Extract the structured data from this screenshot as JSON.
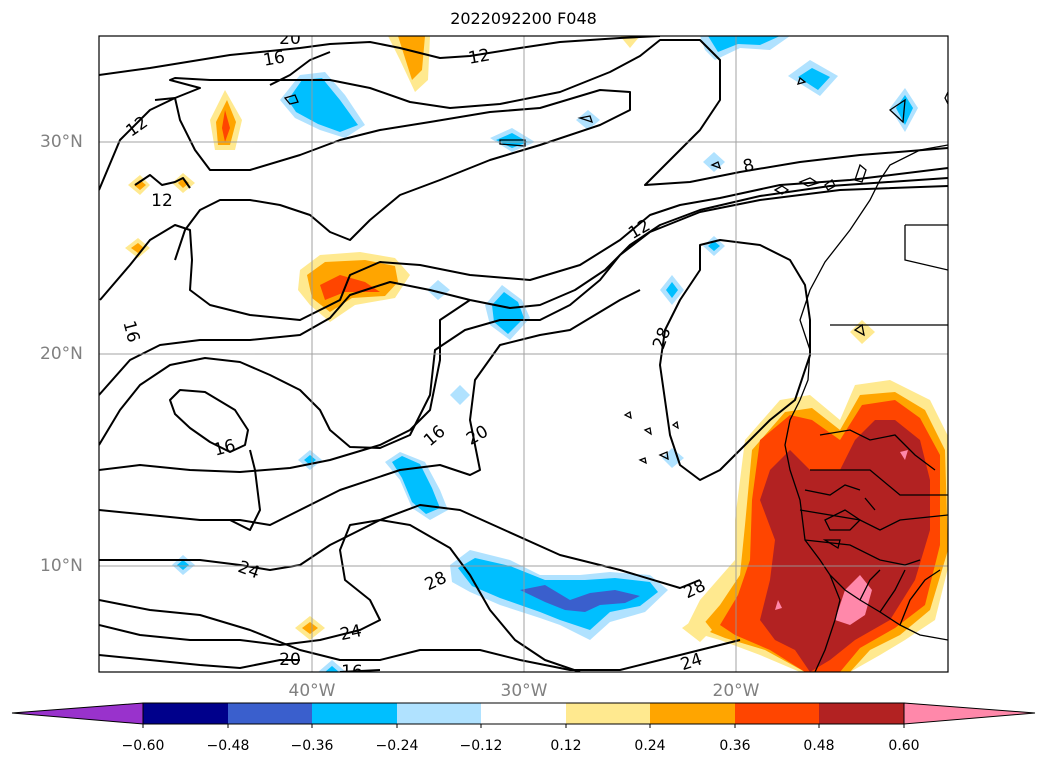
{
  "title": "2022092200 F048",
  "lat_labels": [
    "30°N",
    "20°N",
    "10°N"
  ],
  "lon_labels": [
    "40°W",
    "30°W",
    "20°W"
  ],
  "contour_labels": [
    "20",
    "16",
    "12",
    "12",
    "12",
    "8",
    "12",
    "16",
    "28",
    "16",
    "16",
    "20",
    "24",
    "28",
    "24",
    "28",
    "24",
    "20",
    "16"
  ],
  "colorbar": {
    "ticks": [
      "−0.60",
      "−0.48",
      "−0.36",
      "−0.24",
      "−0.12",
      "0.12",
      "0.24",
      "0.36",
      "0.48",
      "0.60"
    ],
    "colors": [
      "#9932cc",
      "#00008b",
      "#3a5fcd",
      "#00bfff",
      "#b0e2ff",
      "#ffffff",
      "#ffe98f",
      "#ffa500",
      "#ff4500",
      "#b22222",
      "#ff88aa"
    ]
  },
  "palette": {
    "yellow": "#ffe98f",
    "orange": "#ffa500",
    "orangered": "#ff4500",
    "darkred": "#b22222",
    "pink": "#ff88aa",
    "lightblue": "#b0e2ff",
    "blue": "#00bfff",
    "royal": "#3a5fcd"
  }
}
